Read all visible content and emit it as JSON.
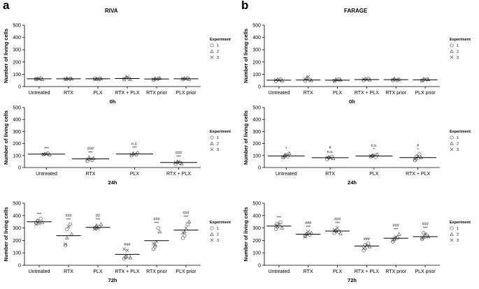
{
  "figure": {
    "panel_a_label": "a",
    "panel_b_label": "b",
    "panel_a_title": "RIVA",
    "panel_b_title": "FARAGE"
  },
  "legend": {
    "title": "Experiment",
    "entries": [
      {
        "symbol": "circle",
        "label": "1"
      },
      {
        "symbol": "triangle",
        "label": "2"
      },
      {
        "symbol": "cross",
        "label": "3"
      }
    ]
  },
  "chart_data": [
    {
      "id": "riva-0h",
      "type": "scatter",
      "title": "0h",
      "ylabel": "Number of living cells",
      "ylim": [
        0,
        500
      ],
      "yticks": [
        0,
        100,
        200,
        300,
        400,
        500
      ],
      "categories": [
        "Untreated",
        "RTX",
        "PLX",
        "RTX + PLX",
        "RTX prior",
        "PLX prior"
      ],
      "means": [
        63,
        63,
        63,
        65,
        62,
        63
      ],
      "points": [
        [
          60,
          66,
          63,
          68,
          58,
          62
        ],
        [
          62,
          66,
          60,
          64,
          63,
          61
        ],
        [
          64,
          60,
          66,
          62,
          65,
          61
        ],
        [
          58,
          75,
          80,
          65,
          60,
          62
        ],
        [
          56,
          66,
          60,
          64,
          68,
          58
        ],
        [
          58,
          66,
          63,
          68,
          60,
          65
        ]
      ],
      "annotations": [
        [],
        [],
        [],
        [],
        [],
        []
      ]
    },
    {
      "id": "riva-24h",
      "type": "scatter",
      "title": "24h",
      "ylabel": "Number of living cells",
      "ylim": [
        0,
        500
      ],
      "yticks": [
        0,
        100,
        200,
        300,
        400,
        500
      ],
      "categories": [
        "Untreated",
        "RTX",
        "PLX",
        "RTX + PLX"
      ],
      "means": [
        112,
        72,
        113,
        42
      ],
      "points": [
        [
          108,
          115,
          112,
          118,
          106,
          110
        ],
        [
          55,
          85,
          72,
          62,
          78,
          66
        ],
        [
          100,
          118,
          112,
          106,
          125,
          108
        ],
        [
          30,
          45,
          50,
          38,
          33,
          42
        ]
      ],
      "annotations": [
        [
          "***"
        ],
        [
          "###",
          "***"
        ],
        [
          "n.s.",
          "***"
        ],
        [
          "###",
          "***"
        ]
      ]
    },
    {
      "id": "riva-72h",
      "type": "scatter",
      "title": "72h",
      "ylabel": "Number of living cells",
      "ylim": [
        0,
        500
      ],
      "yticks": [
        0,
        100,
        200,
        300,
        400,
        500
      ],
      "categories": [
        "Untreated",
        "RTX",
        "PLX",
        "RTX + PLX",
        "RTX prior",
        "PLX prior"
      ],
      "means": [
        350,
        238,
        305,
        88,
        198,
        283
      ],
      "points": [
        [
          340,
          360,
          335,
          375,
          345,
          330,
          355
        ],
        [
          160,
          220,
          310,
          330,
          250,
          170,
          290
        ],
        [
          300,
          320,
          295,
          310,
          330,
          290,
          305
        ],
        [
          55,
          65,
          120,
          75,
          60,
          130,
          70
        ],
        [
          130,
          165,
          190,
          300,
          270,
          175,
          150
        ],
        [
          220,
          270,
          300,
          330,
          350,
          260,
          240
        ]
      ],
      "annotations": [
        [
          "***"
        ],
        [
          "###",
          "***"
        ],
        [
          "##",
          "***"
        ],
        [
          "###"
        ],
        [
          "###",
          "***"
        ],
        [
          "###",
          "***"
        ]
      ]
    },
    {
      "id": "farage-0h",
      "type": "scatter",
      "title": "0h",
      "ylabel": "Number of living cells",
      "ylim": [
        0,
        500
      ],
      "yticks": [
        0,
        100,
        200,
        300,
        400,
        500
      ],
      "categories": [
        "Untreated",
        "RTX",
        "PLX",
        "RTX + PLX",
        "RTX prior",
        "PLX prior"
      ],
      "means": [
        52,
        53,
        52,
        57,
        56,
        55
      ],
      "points": [
        [
          45,
          58,
          52,
          60,
          48,
          55
        ],
        [
          48,
          70,
          80,
          55,
          50,
          60
        ],
        [
          48,
          58,
          52,
          60,
          55,
          45
        ],
        [
          50,
          62,
          58,
          66,
          55,
          60
        ],
        [
          52,
          64,
          58,
          50,
          60,
          55
        ],
        [
          50,
          63,
          55,
          60,
          58,
          48
        ]
      ],
      "annotations": [
        [],
        [],
        [],
        [],
        [],
        []
      ]
    },
    {
      "id": "farage-24h",
      "type": "scatter",
      "title": "24h",
      "ylabel": "Number of living cells",
      "ylim": [
        0,
        500
      ],
      "yticks": [
        0,
        100,
        200,
        300,
        400,
        500
      ],
      "categories": [
        "Untreated",
        "RTX",
        "PLX",
        "RTX + PLX"
      ],
      "means": [
        97,
        82,
        96,
        83
      ],
      "points": [
        [
          85,
          100,
          110,
          92,
          118,
          88,
          95
        ],
        [
          70,
          88,
          80,
          92,
          76,
          85,
          82
        ],
        [
          90,
          100,
          105,
          88,
          110,
          95,
          98
        ],
        [
          60,
          75,
          95,
          110,
          85,
          70,
          90
        ]
      ],
      "annotations": [
        [
          "*"
        ],
        [
          "#",
          "n.s."
        ],
        [
          "n.s.",
          "*"
        ],
        [
          "#",
          "*"
        ]
      ]
    },
    {
      "id": "farage-72h",
      "type": "scatter",
      "title": "72h",
      "ylabel": "Number of living cells",
      "ylim": [
        0,
        500
      ],
      "yticks": [
        0,
        100,
        200,
        300,
        400,
        500
      ],
      "categories": [
        "Untreated",
        "RTX",
        "PLX",
        "RTX + PLX",
        "RTX prior",
        "PLX prior"
      ],
      "means": [
        315,
        250,
        275,
        155,
        218,
        230
      ],
      "points": [
        [
          290,
          310,
          330,
          345,
          300,
          320,
          335
        ],
        [
          235,
          255,
          270,
          245,
          260,
          230,
          250
        ],
        [
          260,
          280,
          300,
          270,
          255,
          285,
          275
        ],
        [
          120,
          140,
          160,
          175,
          150,
          135,
          165
        ],
        [
          190,
          210,
          230,
          220,
          250,
          200,
          215
        ],
        [
          210,
          225,
          250,
          240,
          230,
          215,
          260
        ]
      ],
      "annotations": [
        [
          "***"
        ],
        [
          "###",
          "***"
        ],
        [
          "###",
          "***"
        ],
        [
          "###"
        ],
        [
          "###",
          "***"
        ],
        [
          "###",
          "***"
        ]
      ]
    }
  ]
}
